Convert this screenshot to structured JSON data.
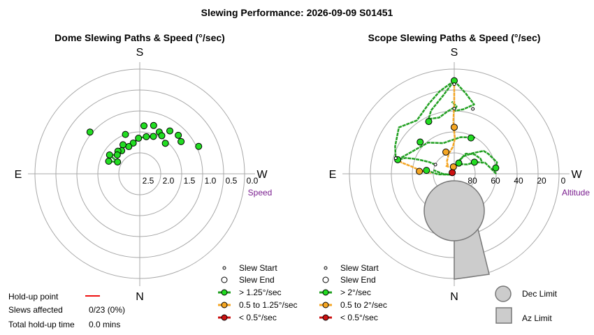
{
  "title": "Slewing Performance: 2026-09-09 S01451",
  "colors": {
    "fast": "#22a022",
    "fastFill": "#22dd22",
    "mid": "#f5a623",
    "slow": "#cc1111",
    "grid": "#a8a8a8",
    "limit": "#cccccc",
    "unit": "#7a1e8f"
  },
  "chart_data": [
    {
      "type": "scatter",
      "title": "Dome Slewing Paths & Speed (°/sec)",
      "projection": "polar",
      "cardinals": {
        "top": "S",
        "bottom": "N",
        "left": "E",
        "right": "W"
      },
      "radial_label": "Speed",
      "radial_ticks": [
        "2.5",
        "2.0",
        "1.5",
        "1.0",
        "0.5",
        "0.0"
      ],
      "series": [
        {
          "name": "> 1.25°/sec",
          "points": [
            {
              "az": 200,
              "speed": 2.05
            },
            {
              "az": 190,
              "speed": 2.1
            },
            {
              "az": 178,
              "speed": 2.15
            },
            {
              "az": 168,
              "speed": 2.25
            },
            {
              "az": 158,
              "speed": 2.3
            },
            {
              "az": 150,
              "speed": 2.2
            },
            {
              "az": 142,
              "speed": 2.3
            },
            {
              "az": 136,
              "speed": 2.25
            },
            {
              "az": 130,
              "speed": 2.3
            },
            {
              "az": 122,
              "speed": 2.15
            },
            {
              "az": 118,
              "speed": 2.4
            },
            {
              "az": 112,
              "speed": 2.2
            },
            {
              "az": 160,
              "speed": 2.0
            },
            {
              "az": 205,
              "speed": 1.9
            },
            {
              "az": 196,
              "speed": 1.8
            },
            {
              "az": 215,
              "speed": 1.75
            },
            {
              "az": 225,
              "speed": 1.7
            },
            {
              "az": 232,
              "speed": 1.75
            },
            {
              "az": 245,
              "speed": 1.45
            },
            {
              "az": 220,
              "speed": 2.05
            },
            {
              "az": 210,
              "speed": 1.95
            },
            {
              "az": 185,
              "speed": 1.85
            },
            {
              "az": 130,
              "speed": 1.45
            }
          ]
        }
      ]
    },
    {
      "type": "line",
      "title": "Scope Slewing Paths & Speed (°/sec)",
      "projection": "polar",
      "cardinals": {
        "top": "S",
        "bottom": "N",
        "left": "E",
        "right": "W"
      },
      "radial_label": "Altitude",
      "radial_ticks": [
        "80",
        "60",
        "40",
        "20",
        "0"
      ],
      "series": [
        {
          "name": "> 2°/sec",
          "paths": [
            [
              [
                180,
                33
              ],
              [
                174,
                36
              ],
              [
                165,
                40
              ],
              [
                155,
                38
              ],
              [
                160,
                32
              ],
              [
                172,
                22
              ],
              [
                180,
                10
              ]
            ],
            [
              [
                180,
                10
              ],
              [
                188,
                20
              ],
              [
                196,
                28
              ],
              [
                188,
                34
              ],
              [
                180,
                36
              ],
              [
                182,
                32
              ],
              [
                178,
                28
              ]
            ],
            [
              [
                180,
                10
              ],
              [
                170,
                18
              ],
              [
                160,
                26
              ],
              [
                145,
                34
              ],
              [
                130,
                28
              ],
              [
                115,
                34
              ],
              [
                105,
                38
              ]
            ],
            [
              [
                116,
                72
              ],
              [
                115,
                66
              ],
              [
                112,
                58
              ],
              [
                110,
                52
              ],
              [
                108,
                46
              ],
              [
                104,
                40
              ]
            ],
            [
              [
                104,
                40
              ],
              [
                120,
                50
              ],
              [
                140,
                55
              ],
              [
                160,
                62
              ],
              [
                190,
                58
              ],
              [
                210,
                54
              ]
            ],
            [
              [
                270,
                54
              ],
              [
                262,
                58
              ],
              [
                250,
                62
              ],
              [
                240,
                70
              ],
              [
                235,
                76
              ],
              [
                215,
                80
              ],
              [
                196,
                80
              ]
            ],
            [
              [
                196,
                80
              ],
              [
                208,
                73
              ],
              [
                222,
                66
              ],
              [
                232,
                58
              ],
              [
                240,
                56
              ],
              [
                255,
                52
              ],
              [
                262,
                54
              ]
            ],
            [
              [
                200,
                78
              ],
              [
                210,
                70
              ],
              [
                226,
                66
              ],
              [
                240,
                64
              ],
              [
                250,
                64
              ]
            ],
            [
              [
                97,
                66
              ],
              [
                88,
                76
              ],
              [
                80,
                86
              ],
              [
                90,
                80
              ],
              [
                100,
                72
              ]
            ]
          ],
          "starts": [
            [
              180,
              10
            ],
            [
              180,
              34
            ],
            [
              196,
              32
            ],
            [
              104,
              40
            ],
            [
              116,
              72
            ],
            [
              262,
              54
            ]
          ],
          "ends": [
            [
              180,
              10
            ],
            [
              154,
              40
            ],
            [
              205,
              56
            ],
            [
              203,
              80
            ],
            [
              262,
              54
            ],
            [
              133,
              50
            ],
            [
              240,
              70
            ],
            [
              104,
              40
            ],
            [
              97,
              66
            ]
          ]
        },
        {
          "name": "0.5 to 2°/sec",
          "paths": [
            [
              [
                180,
                13
              ],
              [
                180,
                30
              ],
              [
                179,
                45
              ],
              [
                181,
                60
              ],
              [
                177,
                67
              ]
            ],
            [
              [
                177,
                67
              ],
              [
                165,
                72
              ],
              [
                148,
                78
              ],
              [
                140,
                82
              ],
              [
                133,
                80
              ]
            ],
            [
              [
                105,
                38
              ],
              [
                102,
                44
              ],
              [
                100,
                52
              ],
              [
                96,
                60
              ],
              [
                93,
                66
              ],
              [
                92,
                70
              ]
            ]
          ],
          "starts": [
            [
              180,
              13
            ],
            [
              105,
              38
            ]
          ],
          "ends": [
            [
              180,
              50
            ],
            [
              159,
              70
            ],
            [
              173,
              84
            ],
            [
              94,
              60
            ]
          ]
        },
        {
          "name": "< 0.5°/sec",
          "paths": [],
          "starts": [],
          "ends": [
            [
              120,
              88
            ]
          ]
        }
      ],
      "limits": {
        "dec": "Dec Limit",
        "az": "Az Limit"
      }
    }
  ],
  "legend": {
    "slew_start": "Slew Start",
    "slew_end": "Slew End",
    "dome": [
      ">  1.25°/sec",
      "0.5 to 1.25°/sec",
      "<  0.5°/sec"
    ],
    "scope": [
      ">  2°/sec",
      "0.5 to 2°/sec",
      "<  0.5°/sec"
    ],
    "dec_limit": "Dec Limit",
    "az_limit": "Az Limit"
  },
  "info": {
    "holdup_label": "Hold-up point",
    "slews_label": "Slews affected",
    "slews_value": "0/23 (0%)",
    "total_label": "Total hold-up time",
    "total_value": "0.0 mins"
  }
}
